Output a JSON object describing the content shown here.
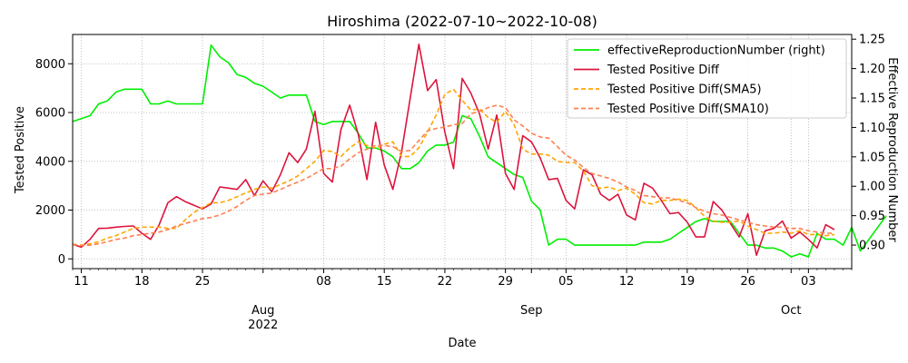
{
  "chart_data": {
    "type": "line",
    "title": "Hiroshima (2022-07-10~2022-10-08)",
    "xlabel": "Date",
    "ylabel": "Tested Positive",
    "ylabel_right": "Effective Reproduction Number",
    "x_start": "2022-07-10",
    "x_end": "2022-10-08",
    "xlim": [
      "2022-07-10",
      "2022-10-08"
    ],
    "ylim": [
      -400,
      9200
    ],
    "ylim_right": [
      0.86,
      1.258
    ],
    "grid": true,
    "legend_position": "top-right",
    "x_ticks": [
      {
        "date": "2022-07-11",
        "label": "11"
      },
      {
        "date": "2022-07-18",
        "label": "18"
      },
      {
        "date": "2022-07-25",
        "label": "25"
      },
      {
        "date": "2022-08-01",
        "label": "Aug\n2022"
      },
      {
        "date": "2022-08-08",
        "label": "08"
      },
      {
        "date": "2022-08-15",
        "label": "15"
      },
      {
        "date": "2022-08-22",
        "label": "22"
      },
      {
        "date": "2022-08-29",
        "label": "29"
      },
      {
        "date": "2022-09-01",
        "label": "Sep"
      },
      {
        "date": "2022-09-05",
        "label": "05"
      },
      {
        "date": "2022-09-12",
        "label": "12"
      },
      {
        "date": "2022-09-19",
        "label": "19"
      },
      {
        "date": "2022-09-26",
        "label": "26"
      },
      {
        "date": "2022-10-01",
        "label": "Oct"
      },
      {
        "date": "2022-10-03",
        "label": "03"
      }
    ],
    "y_ticks": [
      0,
      2000,
      4000,
      6000,
      8000
    ],
    "y_ticks_right": [
      0.9,
      0.95,
      1.0,
      1.05,
      1.1,
      1.15,
      1.2,
      1.25
    ],
    "series": [
      {
        "name": "effectiveReproductionNumber (right)",
        "axis": "right",
        "color": "#00ee00",
        "style": "solid",
        "values": [
          1.11,
          1.115,
          1.12,
          1.14,
          1.145,
          1.16,
          1.165,
          1.165,
          1.165,
          1.14,
          1.14,
          1.145,
          1.14,
          1.14,
          1.14,
          1.14,
          1.24,
          1.22,
          1.21,
          1.19,
          1.185,
          1.175,
          1.17,
          1.16,
          1.15,
          1.155,
          1.155,
          1.155,
          1.11,
          1.105,
          1.11,
          1.11,
          1.11,
          1.09,
          1.065,
          1.065,
          1.06,
          1.05,
          1.03,
          1.03,
          1.04,
          1.06,
          1.07,
          1.07,
          1.075,
          1.12,
          1.115,
          1.085,
          1.05,
          1.04,
          1.03,
          1.02,
          1.015,
          0.975,
          0.96,
          0.9,
          0.91,
          0.91,
          0.9,
          0.9,
          0.9,
          0.9,
          0.9,
          0.9,
          0.9,
          0.9,
          0.905,
          0.905,
          0.905,
          0.91,
          0.92,
          0.93,
          0.94,
          0.945,
          0.94,
          0.94,
          0.94,
          0.92,
          0.9,
          0.9,
          0.895,
          0.895,
          0.89,
          0.88,
          0.885,
          0.88,
          0.92,
          0.91,
          0.91,
          0.9,
          0.93,
          0.89,
          0.91,
          0.93,
          0.95
        ]
      },
      {
        "name": "Tested Positive Diff",
        "axis": "left",
        "color": "#dc143c",
        "style": "solid",
        "values": [
          600,
          480,
          800,
          1250,
          1260,
          1300,
          1330,
          1350,
          1050,
          800,
          1400,
          2300,
          2550,
          2350,
          2200,
          2050,
          2250,
          2950,
          2900,
          2850,
          3250,
          2600,
          3200,
          2750,
          3450,
          4350,
          3950,
          4500,
          6050,
          3500,
          3150,
          5300,
          6300,
          5100,
          3250,
          5600,
          3850,
          2850,
          4400,
          6600,
          8800,
          6900,
          7350,
          5200,
          3700,
          7400,
          6800,
          5950,
          4500,
          5900,
          3500,
          2850,
          5050,
          4800,
          4150,
          3250,
          3300,
          2400,
          2050,
          3650,
          3450,
          2650,
          2400,
          2650,
          1800,
          1600,
          3100,
          2900,
          2400,
          1850,
          1900,
          1500,
          900,
          900,
          2350,
          2000,
          1450,
          900,
          1850,
          150,
          1150,
          1250,
          1550,
          850,
          1100,
          800,
          450,
          1400,
          1200
        ]
      },
      {
        "name": "Tested Positive Diff(SMA5)",
        "axis": "left",
        "color": "#ffa500",
        "style": "dashed",
        "values": [
          600,
          560,
          620,
          700,
          850,
          950,
          1100,
          1250,
          1300,
          1300,
          1300,
          1250,
          1250,
          1600,
          1900,
          2100,
          2300,
          2300,
          2400,
          2550,
          2700,
          2850,
          2950,
          2900,
          3050,
          3200,
          3400,
          3700,
          4000,
          4450,
          4400,
          4200,
          4550,
          4800,
          4650,
          4550,
          4700,
          4800,
          4200,
          4200,
          4550,
          5200,
          5900,
          6750,
          6950,
          6500,
          6100,
          6150,
          5800,
          5600,
          6050,
          5500,
          4500,
          4300,
          4300,
          4250,
          4000,
          3950,
          3950,
          3600,
          3000,
          2900,
          2950,
          2800,
          2900,
          2650,
          2300,
          2250,
          2400,
          2400,
          2450,
          2400,
          2100,
          1750,
          1550,
          1500,
          1500,
          1550,
          1350,
          1200,
          1050,
          1050,
          1100,
          1050,
          1150,
          1000,
          1000,
          950,
          1000
        ]
      },
      {
        "name": "Tested Positive Diff(SMA10)",
        "axis": "left",
        "color": "#ff7f50",
        "style": "dashed",
        "values": [
          600,
          540,
          560,
          620,
          700,
          800,
          850,
          950,
          1000,
          1050,
          1100,
          1200,
          1350,
          1450,
          1550,
          1650,
          1700,
          1800,
          1950,
          2150,
          2400,
          2600,
          2650,
          2700,
          2850,
          3000,
          3150,
          3300,
          3500,
          3700,
          3700,
          3800,
          4100,
          4350,
          4500,
          4650,
          4650,
          4600,
          4400,
          4450,
          4850,
          5250,
          5350,
          5400,
          5500,
          5550,
          5950,
          6050,
          6200,
          6300,
          6200,
          5700,
          5450,
          5150,
          5000,
          4950,
          4600,
          4250,
          4050,
          3750,
          3500,
          3400,
          3300,
          3150,
          2950,
          2800,
          2600,
          2550,
          2500,
          2500,
          2400,
          2300,
          2100,
          1950,
          1850,
          1800,
          1700,
          1600,
          1500,
          1400,
          1350,
          1300,
          1300,
          1250,
          1250,
          1150,
          1100,
          1050,
          1050
        ]
      }
    ]
  }
}
